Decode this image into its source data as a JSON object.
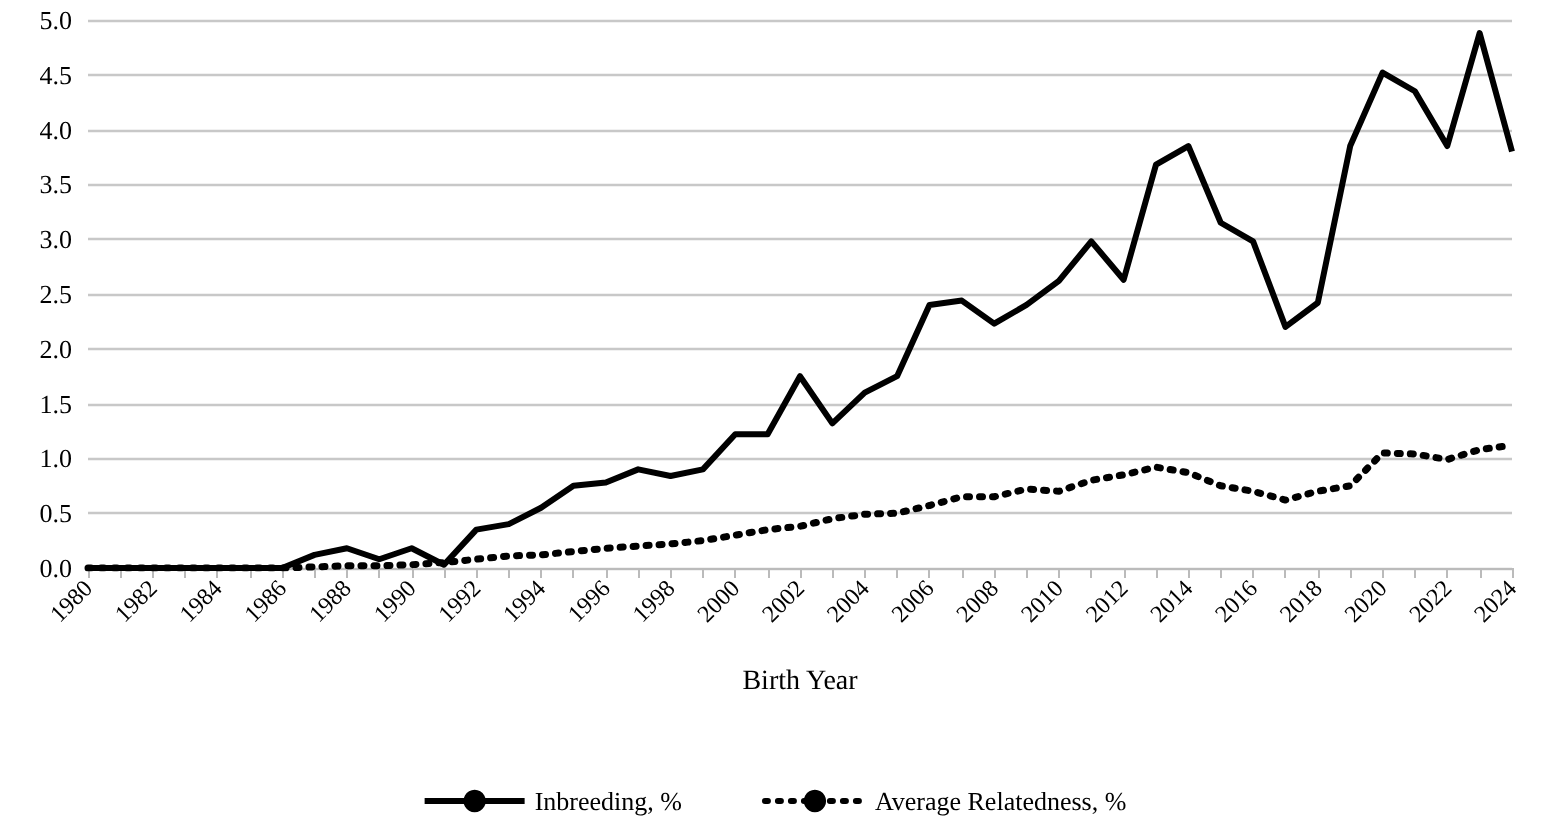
{
  "chart_data": {
    "type": "line",
    "xlabel": "Birth Year",
    "categories": [
      "1980",
      null,
      "1982",
      null,
      "1984",
      null,
      "1986",
      null,
      "1988",
      null,
      "1990",
      null,
      "1992",
      null,
      "1994",
      null,
      "1996",
      null,
      "1998",
      null,
      "2000",
      null,
      "2002",
      null,
      "2004",
      null,
      "2006",
      null,
      "2008",
      null,
      "2010",
      null,
      "2012",
      null,
      "2014",
      null,
      "2016",
      null,
      "2018",
      null,
      "2020",
      null,
      "2022",
      null,
      "2024"
    ],
    "series": [
      {
        "name": "Inbreeding, %",
        "color": "#000000",
        "line_style": "solid",
        "values": [
          0,
          0,
          0,
          0,
          0,
          0,
          0,
          0.12,
          0.18,
          0.08,
          0.18,
          0.03,
          0.35,
          0.4,
          0.55,
          0.75,
          0.78,
          0.9,
          0.84,
          0.9,
          1.22,
          1.22,
          1.75,
          1.32,
          1.6,
          1.75,
          2.4,
          2.44,
          2.23,
          2.4,
          2.62,
          2.98,
          2.63,
          3.68,
          3.85,
          3.15,
          2.98,
          2.2,
          2.42,
          3.85,
          4.52,
          4.35,
          3.85,
          4.88,
          3.8
        ]
      },
      {
        "name": "Average Relatedness, %",
        "color": "#000000",
        "line_style": "dotted",
        "values": [
          0,
          0,
          0,
          0,
          0,
          0,
          0,
          0.01,
          0.02,
          0.02,
          0.03,
          0.05,
          0.08,
          0.11,
          0.12,
          0.15,
          0.18,
          0.2,
          0.22,
          0.25,
          0.3,
          0.35,
          0.38,
          0.45,
          0.49,
          0.5,
          0.57,
          0.65,
          0.65,
          0.72,
          0.7,
          0.8,
          0.85,
          0.92,
          0.87,
          0.75,
          0.7,
          0.62,
          0.7,
          0.75,
          1.05,
          1.04,
          0.99,
          1.08,
          1.12
        ]
      }
    ],
    "ylim": [
      0,
      5
    ],
    "yticks": [
      {
        "value": 0,
        "label": "0.0"
      },
      {
        "value": 0.5,
        "label": "0.5"
      },
      {
        "value": 1,
        "label": "1.0"
      },
      {
        "value": 1.5,
        "label": "1.5"
      },
      {
        "value": 2,
        "label": "2.0"
      },
      {
        "value": 2.5,
        "label": "2.5"
      },
      {
        "value": 3,
        "label": "3.0"
      },
      {
        "value": 3.5,
        "label": "3.5"
      },
      {
        "value": 4,
        "label": "4.0"
      },
      {
        "value": 4.5,
        "label": "4.5"
      },
      {
        "value": 5,
        "label": "5.0"
      }
    ],
    "grid": "y",
    "legend": "bottom",
    "marker": "none"
  }
}
